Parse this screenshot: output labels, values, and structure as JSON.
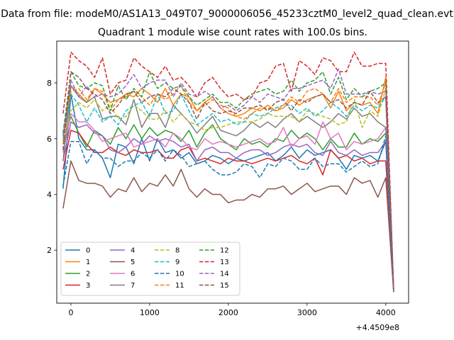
{
  "figure": {
    "suptitle": "Data from file: modeM0/AS1A13_049T07_9000006056_45233cztM0_level2_quad_clean.evt",
    "title": "Quadrant 1 module wise count rates with 100.0s bins.",
    "x_offset_label": "+4.4509e8"
  },
  "chart_data": {
    "type": "line",
    "title": "Quadrant 1 module wise count rates with 100.0s bins.",
    "xlabel": "",
    "ylabel": "",
    "xlim": [
      -180,
      4290
    ],
    "ylim": [
      0.1,
      9.5
    ],
    "x_offset": 445090000,
    "xticks": [
      0,
      1000,
      2000,
      3000,
      4000
    ],
    "yticks": [
      2,
      4,
      6,
      8
    ],
    "grid": false,
    "legend": {
      "placement": "lower-left",
      "columns": 4
    },
    "x": [
      -100,
      0,
      100,
      200,
      300,
      400,
      500,
      600,
      700,
      800,
      900,
      1000,
      1100,
      1200,
      1300,
      1400,
      1500,
      1600,
      1700,
      1800,
      1900,
      2000,
      2100,
      2200,
      2300,
      2400,
      2500,
      2600,
      2700,
      2800,
      2900,
      3000,
      3100,
      3200,
      3300,
      3400,
      3500,
      3600,
      3700,
      3800,
      3900,
      4000,
      4100
    ],
    "series": [
      {
        "name": "0",
        "color": "#1f77b4",
        "dash": "solid",
        "values": [
          4.2,
          7.6,
          6.0,
          5.6,
          5.6,
          5.3,
          4.6,
          5.8,
          5.7,
          5.1,
          6.0,
          5.2,
          6.0,
          5.5,
          5.6,
          5.3,
          5.5,
          5.1,
          5.2,
          5.4,
          5.3,
          5.1,
          5.3,
          5.2,
          5.3,
          5.4,
          5.5,
          5.2,
          5.4,
          5.7,
          5.3,
          5.6,
          5.4,
          5.5,
          5.6,
          5.3,
          4.9,
          5.4,
          5.3,
          5.4,
          5.2,
          5.9,
          0.6
        ]
      },
      {
        "name": "1",
        "color": "#ff7f0e",
        "dash": "solid",
        "values": [
          5.9,
          7.9,
          7.6,
          7.3,
          7.8,
          7.6,
          7.3,
          7.4,
          7.6,
          7.5,
          7.8,
          7.6,
          7.3,
          7.8,
          7.2,
          7.6,
          7.5,
          7.0,
          7.3,
          7.5,
          7.1,
          6.9,
          6.8,
          6.9,
          7.1,
          7.0,
          7.2,
          7.0,
          7.1,
          7.4,
          7.2,
          7.4,
          7.5,
          7.6,
          7.1,
          7.7,
          7.0,
          7.3,
          7.2,
          7.3,
          6.9,
          8.2,
          0.6
        ]
      },
      {
        "name": "2",
        "color": "#2ca02c",
        "dash": "solid",
        "values": [
          5.8,
          6.8,
          6.2,
          5.7,
          6.3,
          6.1,
          5.8,
          6.4,
          6.0,
          6.5,
          6.0,
          6.4,
          6.1,
          6.3,
          6.2,
          5.9,
          6.3,
          5.7,
          6.2,
          6.5,
          6.0,
          5.8,
          5.6,
          6.0,
          5.8,
          5.9,
          5.7,
          6.0,
          5.9,
          6.3,
          6.0,
          6.2,
          6.0,
          5.6,
          6.0,
          5.7,
          5.7,
          6.2,
          5.8,
          6.0,
          5.9,
          6.2,
          0.6
        ]
      },
      {
        "name": "3",
        "color": "#d62728",
        "dash": "solid",
        "values": [
          4.9,
          6.3,
          6.2,
          5.8,
          5.5,
          5.5,
          5.7,
          5.5,
          5.4,
          5.6,
          5.5,
          5.5,
          5.6,
          5.3,
          5.3,
          5.6,
          5.7,
          5.2,
          5.3,
          5.2,
          5.1,
          5.3,
          5.2,
          5.2,
          5.1,
          5.2,
          5.3,
          5.2,
          5.3,
          5.4,
          5.2,
          5.1,
          5.3,
          4.7,
          5.6,
          5.3,
          5.4,
          5.2,
          5.3,
          5.1,
          5.2,
          5.2,
          0.6
        ]
      },
      {
        "name": "4",
        "color": "#9467bd",
        "dash": "solid",
        "values": [
          5.2,
          6.6,
          6.4,
          6.5,
          6.2,
          6.1,
          5.6,
          5.5,
          5.7,
          6.0,
          5.8,
          6.1,
          5.9,
          6.0,
          5.9,
          5.7,
          5.8,
          5.2,
          5.6,
          5.7,
          5.5,
          5.5,
          5.3,
          5.5,
          5.6,
          5.6,
          5.4,
          5.5,
          5.7,
          5.8,
          5.7,
          5.8,
          5.5,
          5.4,
          5.9,
          5.5,
          5.4,
          5.6,
          5.4,
          5.5,
          5.5,
          5.9,
          0.5
        ]
      },
      {
        "name": "5",
        "color": "#8c564b",
        "dash": "solid",
        "values": [
          3.5,
          5.2,
          4.5,
          4.4,
          4.4,
          4.3,
          3.9,
          4.2,
          4.1,
          4.6,
          4.1,
          4.4,
          4.3,
          4.7,
          4.3,
          4.9,
          4.2,
          3.9,
          4.2,
          4.0,
          4.0,
          3.7,
          3.8,
          3.8,
          4.0,
          3.9,
          4.2,
          4.2,
          4.3,
          4.0,
          4.2,
          4.4,
          4.1,
          4.2,
          4.3,
          4.3,
          4.0,
          4.6,
          4.4,
          4.5,
          3.9,
          4.6,
          0.5
        ]
      },
      {
        "name": "6",
        "color": "#e377c2",
        "dash": "solid",
        "values": [
          5.5,
          6.9,
          6.6,
          6.6,
          6.3,
          5.9,
          6.0,
          6.1,
          6.2,
          5.7,
          5.8,
          5.9,
          6.0,
          5.7,
          6.2,
          6.0,
          5.7,
          5.6,
          6.0,
          5.8,
          5.9,
          5.8,
          5.7,
          5.8,
          5.9,
          6.0,
          5.8,
          5.9,
          6.4,
          5.7,
          6.0,
          6.1,
          5.8,
          6.6,
          6.0,
          6.2,
          5.6,
          5.9,
          5.8,
          5.9,
          6.0,
          6.4,
          0.6
        ]
      },
      {
        "name": "7",
        "color": "#7f7f7f",
        "dash": "solid",
        "values": [
          5.2,
          7.9,
          7.5,
          7.3,
          7.5,
          6.7,
          6.8,
          6.8,
          6.5,
          7.4,
          6.4,
          6.9,
          6.9,
          6.4,
          7.2,
          6.9,
          6.6,
          6.2,
          6.5,
          6.8,
          6.3,
          6.2,
          6.1,
          6.3,
          6.6,
          6.4,
          6.6,
          6.4,
          6.7,
          6.9,
          6.6,
          6.8,
          6.6,
          6.4,
          6.6,
          6.9,
          6.7,
          7.1,
          6.8,
          6.9,
          6.6,
          6.4,
          0.6
        ]
      },
      {
        "name": "8",
        "color": "#bcbd22",
        "dash": "dashed",
        "values": [
          5.8,
          7.0,
          7.3,
          7.1,
          7.4,
          7.0,
          7.2,
          6.7,
          6.8,
          7.2,
          7.0,
          6.7,
          6.7,
          7.0,
          6.6,
          6.9,
          6.6,
          6.5,
          6.3,
          6.4,
          6.4,
          6.5,
          6.6,
          6.6,
          6.6,
          6.7,
          6.9,
          6.8,
          6.8,
          6.8,
          6.6,
          7.0,
          6.9,
          6.8,
          6.7,
          6.5,
          6.6,
          7.4,
          6.4,
          7.0,
          6.8,
          7.8,
          0.6
        ]
      },
      {
        "name": "9",
        "color": "#17becf",
        "dash": "dashed",
        "values": [
          6.0,
          7.6,
          7.2,
          6.6,
          7.1,
          6.6,
          6.8,
          6.5,
          7.0,
          7.2,
          7.3,
          6.8,
          7.6,
          6.9,
          7.0,
          7.6,
          7.0,
          6.5,
          6.7,
          6.9,
          6.6,
          6.7,
          6.5,
          6.6,
          6.9,
          6.8,
          6.9,
          7.1,
          7.2,
          7.2,
          6.9,
          7.1,
          6.8,
          7.0,
          7.3,
          7.1,
          6.8,
          7.2,
          7.0,
          7.2,
          7.1,
          7.5,
          0.6
        ]
      },
      {
        "name": "10",
        "color": "#1f77b4",
        "dash": "dashed",
        "values": [
          4.3,
          5.9,
          5.9,
          5.1,
          5.6,
          5.3,
          5.3,
          5.0,
          5.2,
          5.2,
          5.5,
          5.3,
          5.6,
          5.2,
          5.6,
          5.4,
          5.0,
          5.1,
          5.2,
          4.9,
          4.7,
          4.7,
          4.8,
          5.1,
          5.0,
          4.6,
          5.1,
          5.0,
          5.3,
          5.2,
          4.9,
          4.9,
          5.3,
          5.0,
          5.1,
          5.1,
          4.8,
          5.0,
          5.2,
          5.0,
          5.1,
          6.1,
          0.6
        ]
      },
      {
        "name": "11",
        "color": "#ff7f0e",
        "dash": "dashed",
        "values": [
          6.2,
          7.7,
          7.8,
          7.4,
          7.8,
          7.7,
          7.0,
          7.4,
          7.5,
          7.7,
          7.5,
          7.2,
          7.6,
          7.4,
          7.6,
          7.9,
          7.3,
          7.0,
          7.2,
          7.4,
          7.2,
          7.1,
          6.8,
          6.7,
          6.9,
          7.1,
          7.1,
          7.0,
          7.2,
          7.5,
          7.3,
          7.7,
          7.8,
          7.6,
          7.3,
          7.8,
          7.3,
          7.5,
          7.5,
          7.5,
          7.2,
          8.0,
          0.6
        ]
      },
      {
        "name": "12",
        "color": "#2ca02c",
        "dash": "dashed",
        "values": [
          6.2,
          8.4,
          7.9,
          7.8,
          8.0,
          7.9,
          7.0,
          7.9,
          7.4,
          7.8,
          7.5,
          8.4,
          7.8,
          8.0,
          7.8,
          7.9,
          7.5,
          7.2,
          7.4,
          7.6,
          7.3,
          7.3,
          7.1,
          7.4,
          7.6,
          7.7,
          7.8,
          7.6,
          7.7,
          8.1,
          7.7,
          8.0,
          8.1,
          8.4,
          7.6,
          8.2,
          7.4,
          7.8,
          7.5,
          7.7,
          7.8,
          8.0,
          0.6
        ]
      },
      {
        "name": "13",
        "color": "#d62728",
        "dash": "dashed",
        "values": [
          6.9,
          9.1,
          8.8,
          8.6,
          8.2,
          8.9,
          7.6,
          8.0,
          8.1,
          8.9,
          8.6,
          8.4,
          8.2,
          8.6,
          8.1,
          8.2,
          7.9,
          7.5,
          8.0,
          8.2,
          7.8,
          7.5,
          7.6,
          7.4,
          7.5,
          8.0,
          8.1,
          8.6,
          8.7,
          7.7,
          8.8,
          8.6,
          8.3,
          8.9,
          8.8,
          8.4,
          8.4,
          9.1,
          8.6,
          8.6,
          8.7,
          8.7,
          0.6
        ]
      },
      {
        "name": "14",
        "color": "#9467bd",
        "dash": "dashed",
        "values": [
          6.1,
          8.1,
          7.5,
          7.9,
          7.5,
          7.6,
          7.5,
          7.6,
          7.9,
          8.3,
          7.8,
          8.0,
          8.1,
          8.1,
          7.5,
          8.0,
          7.6,
          7.5,
          7.7,
          7.5,
          7.1,
          7.2,
          7.0,
          7.2,
          7.5,
          7.3,
          7.6,
          7.5,
          7.4,
          7.8,
          7.8,
          7.9,
          8.0,
          8.1,
          7.8,
          8.5,
          7.6,
          7.6,
          7.6,
          7.7,
          7.6,
          7.7,
          0.6
        ]
      },
      {
        "name": "15",
        "color": "#8c564b",
        "dash": "dashed",
        "values": [
          5.6,
          8.4,
          8.2,
          7.8,
          7.6,
          7.4,
          6.9,
          7.2,
          7.6,
          7.7,
          7.3,
          7.5,
          7.6,
          7.5,
          7.8,
          7.6,
          7.3,
          6.7,
          7.3,
          7.0,
          6.9,
          7.0,
          6.9,
          7.1,
          7.1,
          7.2,
          7.0,
          7.3,
          7.4,
          7.0,
          7.4,
          7.3,
          7.5,
          7.6,
          7.3,
          7.4,
          7.1,
          7.3,
          7.2,
          7.7,
          7.3,
          7.5,
          0.5
        ]
      }
    ]
  }
}
